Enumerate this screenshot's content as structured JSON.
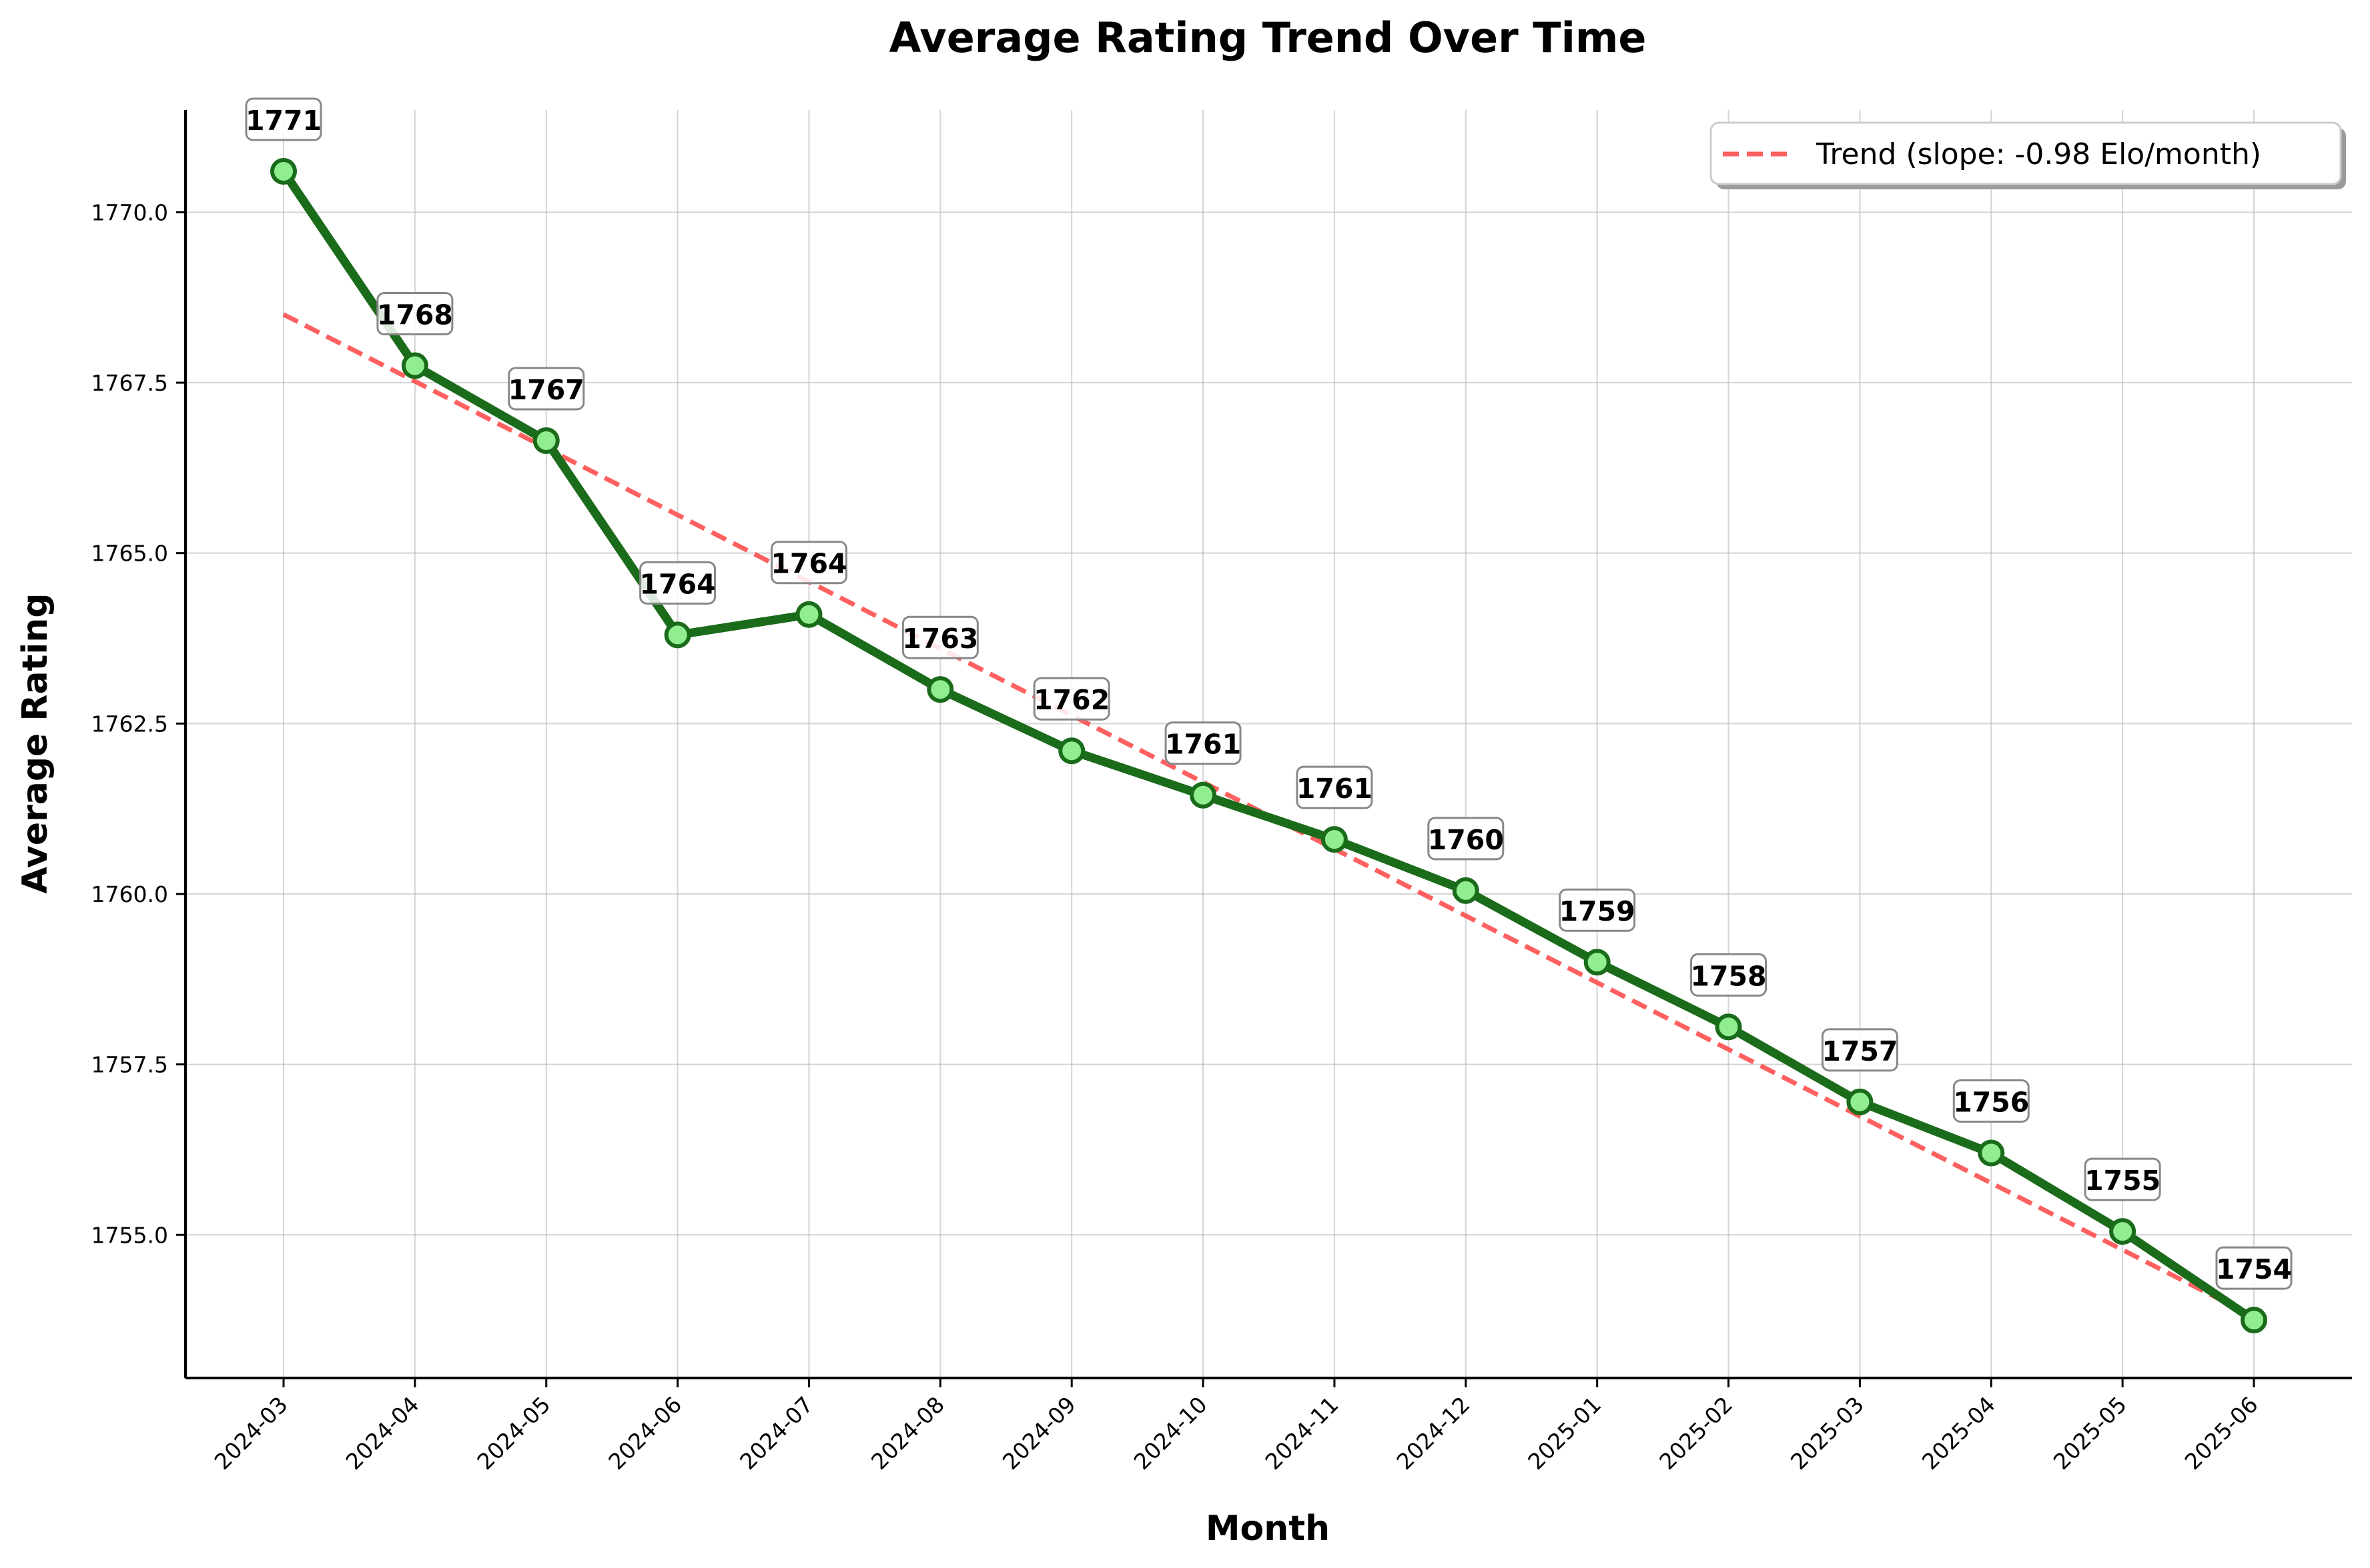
{
  "chart_data": {
    "type": "line",
    "title": "Average Rating Trend Over Time",
    "xlabel": "Month",
    "ylabel": "Average Rating",
    "categories": [
      "2024-03",
      "2024-04",
      "2024-05",
      "2024-06",
      "2024-07",
      "2024-08",
      "2024-09",
      "2024-10",
      "2024-11",
      "2024-12",
      "2025-01",
      "2025-02",
      "2025-03",
      "2025-04",
      "2025-05",
      "2025-06"
    ],
    "series": [
      {
        "values": [
          1770.6,
          1767.75,
          1766.65,
          1763.8,
          1764.1,
          1763.0,
          1762.1,
          1761.45,
          1760.8,
          1760.05,
          1759.0,
          1758.05,
          1756.95,
          1756.2,
          1755.05,
          1753.75
        ],
        "labels": [
          "1771",
          "1768",
          "1767",
          "1764",
          "1764",
          "1763",
          "1762",
          "1761",
          "1761",
          "1760",
          "1759",
          "1758",
          "1757",
          "1756",
          "1755",
          "1754"
        ],
        "color": "#1a6b1a",
        "marker_fill": "#90ee90"
      },
      {
        "name": "Trend (slope: -0.98 Elo/month)",
        "style": "dashed",
        "start": 1768.5,
        "end": 1753.8,
        "color": "#ff4444"
      }
    ],
    "yticks": [
      "1755.0",
      "1757.5",
      "1760.0",
      "1762.5",
      "1765.0",
      "1767.5",
      "1770.0"
    ],
    "ylim": [
      1752.9,
      1771.5
    ],
    "grid": true,
    "legend": "top-right"
  }
}
